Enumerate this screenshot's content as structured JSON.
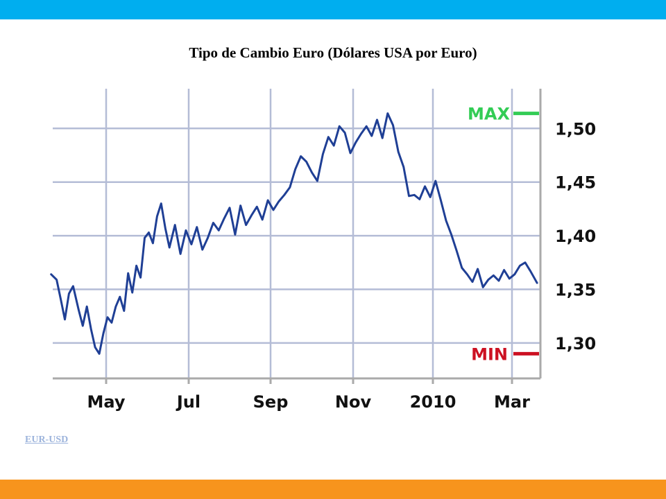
{
  "colors": {
    "top_bar": "#00aeef",
    "bottom_bar": "#f7941d",
    "series_line": "#1f3f95",
    "grid": "#b4bcd6",
    "axis": "#aaaaaa",
    "max_marker": "#33cc55",
    "min_marker": "#cc1122",
    "link": "#9db4dc"
  },
  "title": "Tipo de Cambio Euro (Dólares USA por Euro)",
  "source_link": "EUR-USD",
  "chart_data": {
    "type": "line",
    "title": "Tipo de Cambio Euro (Dólares USA por Euro)",
    "xlabel": "",
    "ylabel": "",
    "x_tick_labels": [
      "May",
      "Jul",
      "Sep",
      "Nov",
      "2010",
      "Mar"
    ],
    "y_tick_labels": [
      "1,50",
      "1,45",
      "1,40",
      "1,35",
      "1,30"
    ],
    "y_ticks": [
      1.5,
      1.45,
      1.4,
      1.35,
      1.3
    ],
    "ylim": [
      1.267,
      1.537
    ],
    "xlim": [
      0,
      18.4
    ],
    "x_tick_positions": [
      2,
      5,
      8,
      11,
      14,
      17
    ],
    "grid": true,
    "max_label": "MAX",
    "min_label": "MIN",
    "max_value": 1.514,
    "min_value": 1.29,
    "series": [
      {
        "x": [
          0,
          0.2,
          0.35,
          0.5,
          0.65,
          0.8,
          1.0,
          1.15,
          1.3,
          1.45,
          1.6,
          1.75,
          1.9,
          2.05,
          2.2,
          2.35,
          2.5,
          2.65,
          2.8,
          2.95,
          3.1,
          3.25,
          3.4,
          3.55,
          3.7,
          3.85,
          4.0,
          4.15,
          4.3,
          4.5,
          4.7,
          4.9,
          5.1,
          5.3,
          5.5,
          5.7,
          5.9,
          6.1,
          6.3,
          6.5,
          6.7,
          6.9,
          7.1,
          7.3,
          7.5,
          7.7,
          7.9,
          8.1,
          8.3,
          8.5,
          8.7,
          8.9,
          9.1,
          9.3,
          9.5,
          9.7,
          9.9,
          10.1,
          10.3,
          10.5,
          10.7,
          10.9,
          11.1,
          11.3,
          11.5,
          11.7,
          11.9,
          12.1,
          12.3,
          12.5,
          12.7,
          12.9,
          13.1,
          13.3,
          13.5,
          13.7,
          13.9,
          14.1,
          14.3,
          14.5,
          14.7,
          14.9,
          15.1,
          15.3,
          15.5,
          15.7,
          15.9,
          16.1,
          16.3,
          16.5,
          16.7,
          16.9,
          17.1,
          17.3,
          17.5,
          17.7,
          17.95
        ],
        "values": [
          1.364,
          1.359,
          1.341,
          1.322,
          1.346,
          1.353,
          1.331,
          1.316,
          1.334,
          1.313,
          1.296,
          1.29,
          1.309,
          1.324,
          1.319,
          1.334,
          1.343,
          1.33,
          1.365,
          1.347,
          1.372,
          1.361,
          1.398,
          1.403,
          1.393,
          1.418,
          1.43,
          1.407,
          1.389,
          1.41,
          1.383,
          1.405,
          1.392,
          1.408,
          1.387,
          1.398,
          1.412,
          1.405,
          1.416,
          1.426,
          1.401,
          1.428,
          1.41,
          1.419,
          1.427,
          1.415,
          1.433,
          1.424,
          1.432,
          1.438,
          1.445,
          1.462,
          1.474,
          1.469,
          1.459,
          1.451,
          1.476,
          1.492,
          1.484,
          1.502,
          1.496,
          1.477,
          1.487,
          1.495,
          1.502,
          1.493,
          1.508,
          1.491,
          1.514,
          1.503,
          1.478,
          1.464,
          1.437,
          1.438,
          1.434,
          1.446,
          1.436,
          1.451,
          1.433,
          1.414,
          1.401,
          1.386,
          1.37,
          1.364,
          1.357,
          1.369,
          1.352,
          1.359,
          1.363,
          1.358,
          1.368,
          1.36,
          1.364,
          1.372,
          1.375,
          1.367,
          1.356
        ]
      }
    ]
  }
}
